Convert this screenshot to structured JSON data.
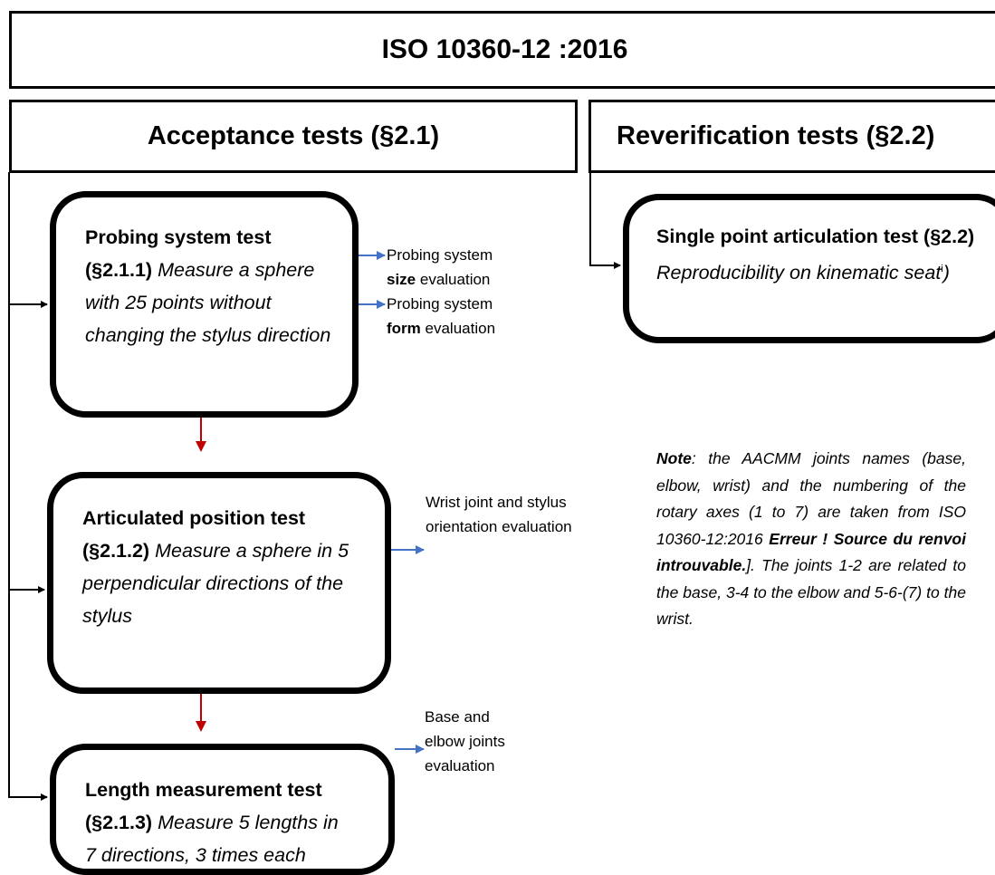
{
  "title": "ISO 10360-12 :2016",
  "sections": [
    {
      "label": "Acceptance tests (§2.1)"
    },
    {
      "label": "Reverification tests (§2.2)"
    }
  ],
  "tests": [
    {
      "bold": "Probing system test (§2.1.1)",
      "italic": "Measure a sphere with 25 points without changing the stylus direction"
    },
    {
      "bold": "Articulated position test (§2.1.2)",
      "italic": "Measure a sphere in 5 perpendicular directions of the stylus"
    },
    {
      "bold": "Length measurement test (§2.1.3)",
      "italic": "Measure 5 lengths in 7 directions, 3 times each"
    },
    {
      "bold": "Single point articulation test (§2.2)",
      "italic": "Reproducibility on kinematic seat",
      "sup": "i",
      "tail": ")"
    }
  ],
  "outputs": [
    {
      "before": "Probing system",
      "bold": "size",
      "after": "evaluation"
    },
    {
      "before": "Probing system",
      "bold": "form",
      "after": "evaluation"
    },
    {
      "text": "Wrist joint and stylus orientation evaluation"
    },
    {
      "text": "Base and elbow joints evaluation"
    }
  ],
  "note": {
    "lead": "Note",
    "body": ": the AACMM joints names (base, elbow, wrist) and the numbering of the rotary axes (1 to 7) are taken from ISO 10360-12:2016 ",
    "error": "Erreur ! Source du renvoi introuvable.",
    "tail": "]. The joints 1-2 are related to the base, 3-4 to the elbow and 5-6-(7) to the wrist."
  }
}
